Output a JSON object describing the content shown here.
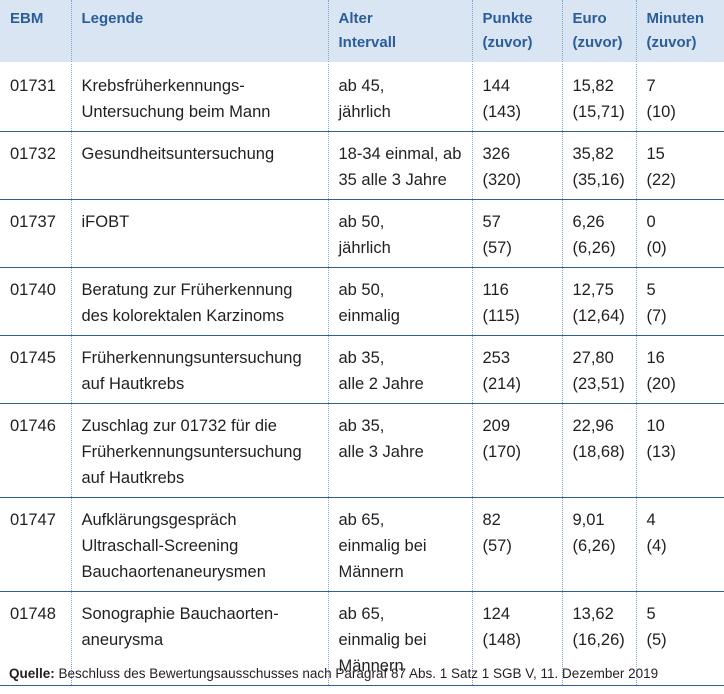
{
  "headers": {
    "ebm": "EBM",
    "legende": "Legende",
    "alter_1": "Alter",
    "alter_2": "Intervall",
    "punkte_1": "Punkte",
    "punkte_2": "(zuvor)",
    "euro_1": "Euro",
    "euro_2": "(zuvor)",
    "minuten_1": "Minuten",
    "minuten_2": "(zuvor)"
  },
  "rows": [
    {
      "ebm": "01731",
      "legende": [
        "Krebsfrüherkennungs-",
        "Untersuchung beim Mann"
      ],
      "alter": [
        "ab 45,",
        "jährlich"
      ],
      "punkte": [
        "144",
        "(143)"
      ],
      "euro": [
        "15,82",
        "(15,71)"
      ],
      "minuten": [
        "7",
        "(10)"
      ]
    },
    {
      "ebm": "01732",
      "legende": [
        "Gesundheitsuntersuchung"
      ],
      "alter": [
        "18-34 einmal, ab",
        "35 alle 3 Jahre"
      ],
      "punkte": [
        "326",
        "(320)"
      ],
      "euro": [
        "35,82",
        "(35,16)"
      ],
      "minuten": [
        "15",
        "(22)"
      ]
    },
    {
      "ebm": "01737",
      "legende": [
        "iFOBT"
      ],
      "alter": [
        "ab 50,",
        "jährlich"
      ],
      "punkte": [
        "57",
        "(57)"
      ],
      "euro": [
        "6,26",
        "(6,26)"
      ],
      "minuten": [
        "0",
        "(0)"
      ]
    },
    {
      "ebm": "01740",
      "legende": [
        "Beratung zur Früherkennung",
        "des kolorektalen Karzinoms"
      ],
      "alter": [
        "ab 50,",
        "einmalig"
      ],
      "punkte": [
        "116",
        "(115)"
      ],
      "euro": [
        "12,75",
        "(12,64)"
      ],
      "minuten": [
        "5",
        "(7)"
      ]
    },
    {
      "ebm": "01745",
      "legende": [
        "Früherkennungsuntersuchung",
        "auf Hautkrebs"
      ],
      "alter": [
        "ab 35,",
        "alle 2 Jahre"
      ],
      "punkte": [
        "253",
        "(214)"
      ],
      "euro": [
        "27,80",
        "(23,51)"
      ],
      "minuten": [
        "16",
        "(20)"
      ]
    },
    {
      "ebm": "01746",
      "legende": [
        "Zuschlag zur 01732 für die",
        "Früherkennungsuntersuchung",
        "auf Hautkrebs"
      ],
      "alter": [
        "ab 35,",
        "alle 3 Jahre"
      ],
      "punkte": [
        "209",
        "(170)"
      ],
      "euro": [
        "22,96",
        "(18,68)"
      ],
      "minuten": [
        "10",
        "(13)"
      ]
    },
    {
      "ebm": "01747",
      "legende": [
        "Aufklärungsgespräch",
        "Ultraschall-Screening",
        "Bauchaortenaneurysmen"
      ],
      "alter": [
        "ab 65,",
        "einmalig bei",
        "Männern"
      ],
      "punkte": [
        "82",
        "(57)"
      ],
      "euro": [
        "9,01",
        "(6,26)"
      ],
      "minuten": [
        "4",
        "(4)"
      ]
    },
    {
      "ebm": "01748",
      "legende": [
        "Sonographie Bauchaorten-",
        "aneurysma"
      ],
      "alter": [
        "ab 65,",
        "einmalig bei",
        "Männern"
      ],
      "punkte": [
        "124",
        "(148)"
      ],
      "euro": [
        "13,62",
        "(16,26)"
      ],
      "minuten": [
        "5",
        "(5)"
      ]
    }
  ],
  "source": {
    "label": "Quelle:",
    "text": " Beschluss des Bewertungsausschusses nach Paragraf 87 Abs. 1 Satz 1 SGB V, 11. Dezember 2019"
  }
}
